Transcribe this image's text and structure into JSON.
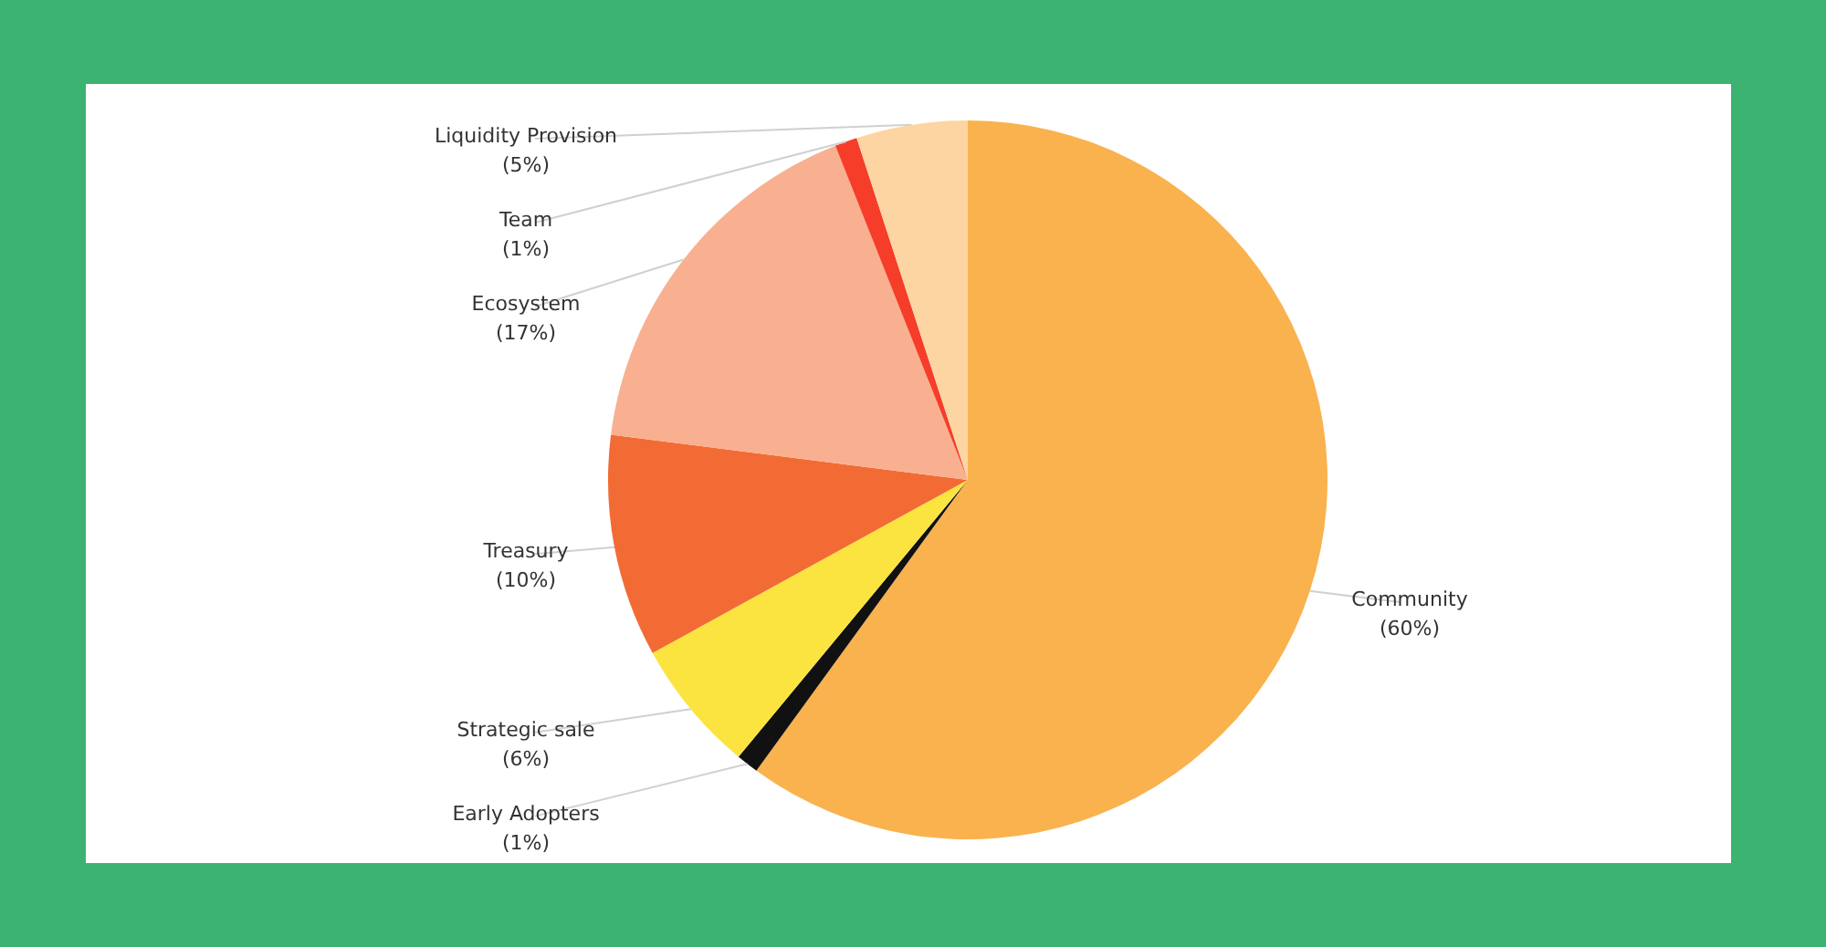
{
  "chart_data": {
    "type": "pie",
    "categories": [
      "Community",
      "Early Adopters",
      "Strategic sale",
      "Treasury",
      "Ecosystem",
      "Team",
      "Liquidity Provision"
    ],
    "values": [
      60,
      1,
      6,
      10,
      17,
      1,
      5
    ],
    "colors": [
      "#f9b24e",
      "#111111",
      "#fce440",
      "#f26b35",
      "#f9b090",
      "#f63d2a",
      "#fdd5a2"
    ],
    "value_labels": [
      "(60%)",
      "(1%)",
      "(6%)",
      "(10%)",
      "(17%)",
      "(1%)",
      "(5%)"
    ]
  }
}
